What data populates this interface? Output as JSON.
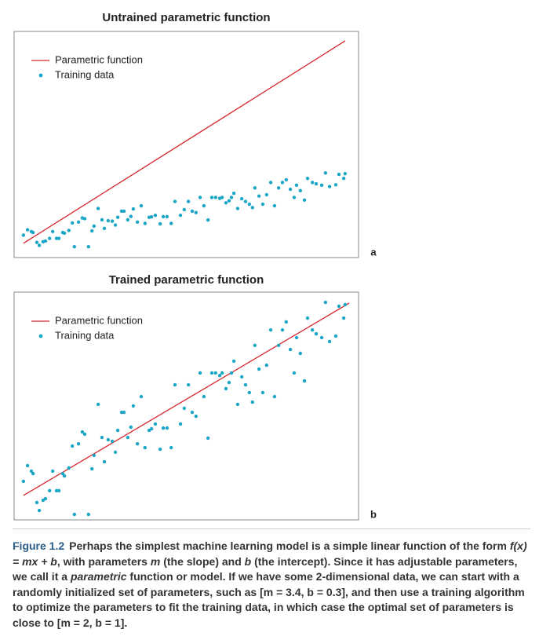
{
  "chart_data": [
    {
      "type": "scatter",
      "title": "Untrained parametric function",
      "panel_label": "a",
      "legend": "upper left",
      "xlim": [
        0,
        100
      ],
      "ylim": [
        0,
        100
      ],
      "series": [
        {
          "name": "Parametric function",
          "type": "line",
          "color": "#d7262b",
          "x": [
            2.7,
            96.1
          ],
          "values": [
            6.3,
            95.8
          ]
        },
        {
          "name": "Training data",
          "type": "scatter",
          "color": "#1ba6c6",
          "x": [
            2.7,
            3.9,
            5.0,
            5.5,
            6.6,
            7.3,
            8.4,
            9.1,
            10.3,
            11.2,
            12.3,
            13.0,
            14.1,
            14.6,
            15.9,
            16.9,
            17.5,
            18.7,
            19.8,
            20.5,
            21.6,
            22.6,
            23.2,
            24.4,
            25.5,
            26.2,
            27.3,
            28.5,
            29.4,
            30.1,
            31.2,
            31.9,
            33.0,
            33.9,
            34.6,
            35.8,
            36.9,
            38.0,
            39.2,
            39.9,
            41.0,
            42.4,
            43.3,
            44.4,
            45.6,
            46.7,
            48.3,
            49.4,
            50.6,
            51.7,
            52.8,
            54.0,
            55.1,
            56.3,
            57.4,
            58.5,
            59.7,
            60.4,
            61.5,
            62.4,
            63.1,
            63.8,
            64.9,
            66.1,
            67.2,
            68.3,
            69.2,
            69.9,
            71.1,
            72.2,
            73.3,
            74.5,
            75.6,
            76.8,
            77.9,
            79.0,
            80.2,
            81.3,
            82.0,
            83.1,
            84.3,
            85.2,
            86.6,
            87.7,
            89.3,
            90.4,
            91.6,
            93.4,
            94.3,
            95.7,
            96.1
          ],
          "values": [
            9.9,
            12.3,
            11.5,
            11.1,
            6.7,
            5.4,
            7.0,
            7.3,
            8.5,
            11.5,
            8.5,
            8.5,
            11.1,
            10.8,
            12.0,
            15.3,
            4.8,
            15.7,
            17.5,
            17.2,
            4.8,
            11.8,
            13.9,
            21.7,
            16.7,
            12.9,
            16.3,
            16.1,
            14.4,
            17.8,
            20.5,
            20.5,
            16.7,
            18.2,
            21.5,
            15.7,
            22.9,
            15.1,
            17.8,
            18.0,
            18.7,
            14.9,
            18.1,
            18.1,
            15.1,
            24.8,
            18.7,
            21.2,
            24.8,
            20.5,
            19.9,
            26.6,
            22.9,
            16.6,
            26.6,
            26.6,
            26.2,
            26.6,
            24.2,
            25.1,
            26.6,
            28.4,
            21.7,
            26.0,
            24.8,
            23.6,
            22.1,
            30.8,
            27.2,
            23.6,
            27.8,
            33.2,
            22.9,
            30.8,
            33.2,
            34.4,
            30.2,
            26.6,
            32.0,
            29.6,
            25.4,
            35.0,
            33.2,
            32.6,
            32.0,
            37.4,
            31.4,
            32.2,
            36.8,
            35.0,
            37.1
          ]
        }
      ]
    },
    {
      "type": "scatter",
      "title": "Trained parametric function",
      "panel_label": "b",
      "legend": "upper left",
      "xlim": [
        0,
        100
      ],
      "ylim": [
        0,
        100
      ],
      "series": [
        {
          "name": "Parametric function",
          "type": "line",
          "color": "#d7262b",
          "x": [
            2.7,
            97.3
          ],
          "values": [
            10.7,
            95.2
          ]
        },
        {
          "name": "Training data",
          "type": "scatter",
          "color": "#1ba6c6",
          "x": [
            2.7,
            3.9,
            5.0,
            5.5,
            6.6,
            7.3,
            8.4,
            9.1,
            10.3,
            11.2,
            12.3,
            13.0,
            14.1,
            14.6,
            15.9,
            16.9,
            17.5,
            18.7,
            19.8,
            20.5,
            21.6,
            22.6,
            23.2,
            24.4,
            25.5,
            26.2,
            27.3,
            28.5,
            29.4,
            30.1,
            31.2,
            31.9,
            33.0,
            33.9,
            34.6,
            35.8,
            36.9,
            38.0,
            39.2,
            39.9,
            41.0,
            42.4,
            43.3,
            44.4,
            45.6,
            46.7,
            48.3,
            49.4,
            50.6,
            51.7,
            52.8,
            54.0,
            55.1,
            56.3,
            57.4,
            58.5,
            59.7,
            60.4,
            61.5,
            62.4,
            63.1,
            63.8,
            64.9,
            66.1,
            67.2,
            68.3,
            69.2,
            69.9,
            71.1,
            72.2,
            73.3,
            74.5,
            75.6,
            76.8,
            77.9,
            79.0,
            80.2,
            81.3,
            82.0,
            83.1,
            84.3,
            85.2,
            86.6,
            87.7,
            89.3,
            90.4,
            91.6,
            93.4,
            94.3,
            95.7,
            96.1
          ],
          "values": [
            16.9,
            23.8,
            21.4,
            20.3,
            7.6,
            4.1,
            8.6,
            9.3,
            12.8,
            21.4,
            12.8,
            12.8,
            20.3,
            19.3,
            22.8,
            32.4,
            2.4,
            33.4,
            38.6,
            37.6,
            2.4,
            22.4,
            28.3,
            50.7,
            36.2,
            25.5,
            35.2,
            34.5,
            29.7,
            39.3,
            47.2,
            47.2,
            36.2,
            40.7,
            50.0,
            33.4,
            54.1,
            31.7,
            39.3,
            40.0,
            42.1,
            31.0,
            40.3,
            40.3,
            31.7,
            59.3,
            42.1,
            49.0,
            59.3,
            47.2,
            45.5,
            64.5,
            54.1,
            35.9,
            64.5,
            64.5,
            63.4,
            64.5,
            57.6,
            60.3,
            64.5,
            69.7,
            50.7,
            62.8,
            59.3,
            55.9,
            51.7,
            76.6,
            66.2,
            55.9,
            67.9,
            83.4,
            54.1,
            76.6,
            83.4,
            86.9,
            74.8,
            64.5,
            80.0,
            73.1,
            61.0,
            88.6,
            83.4,
            81.7,
            80.0,
            95.5,
            78.3,
            80.7,
            93.8,
            88.6,
            94.5
          ]
        }
      ]
    }
  ],
  "caption": {
    "label": "Figure 1.2",
    "segments": [
      {
        "text": "Perhaps the simplest machine learning model is a simple linear function of the form ",
        "italic": false
      },
      {
        "text": "f(x) = mx + b",
        "italic": true
      },
      {
        "text": ", with parameters ",
        "italic": false
      },
      {
        "text": "m",
        "italic": true
      },
      {
        "text": " (the slope) and ",
        "italic": false
      },
      {
        "text": "b",
        "italic": true
      },
      {
        "text": " (the intercept). Since it has adjustable parameters, we call it a ",
        "italic": false
      },
      {
        "text": "parametric",
        "italic": true
      },
      {
        "text": " function or model. If we have some 2-dimensional data, we can start with a randomly initialized set of parameters, such as [m = 3.4, b = 0.3], and then use a training algorithm to optimize the parameters to fit the training data, in which case the optimal set of parameters is close to [m = 2, b = 1].",
        "italic": false
      }
    ]
  }
}
